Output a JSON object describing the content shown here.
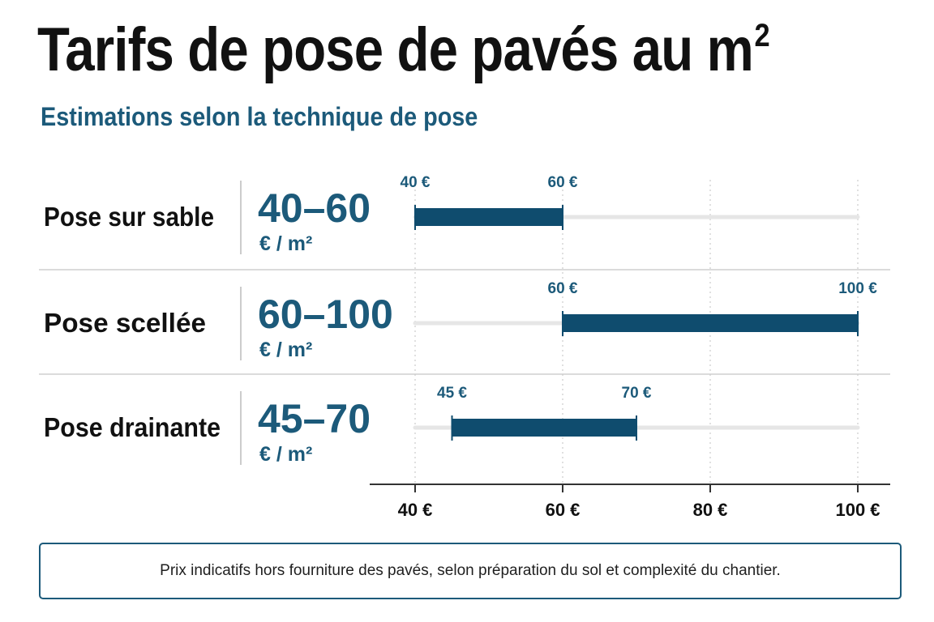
{
  "title": "Tarifs de pose de pavés au m",
  "title_superscript": "2",
  "subtitle": "Estimations selon la technique de pose",
  "unit_label": "€ / m²",
  "footer_note": "Prix indicatifs hors fourniture des pavés, selon préparation du sol et complexité du chantier.",
  "colors": {
    "bar": "#0f4c6e",
    "track": "#e6e6e6",
    "range_text": "#1c5a7a",
    "label_text": "#111111",
    "border": "#1c5a7a"
  },
  "chart_data": {
    "type": "bar",
    "orientation": "horizontal-range",
    "x_ticks": [
      40,
      60,
      80,
      100
    ],
    "x_tick_labels": [
      "40 €",
      "60 €",
      "80 €",
      "100 €"
    ],
    "xlim": [
      40,
      100
    ],
    "grid": true,
    "rows": [
      {
        "label": "Pose sur sable",
        "range_text": "40–60",
        "min": 40,
        "max": 60,
        "min_label": "40 €",
        "max_label": "60 €"
      },
      {
        "label": "Pose scellée",
        "range_text": "60–100",
        "min": 60,
        "max": 100,
        "min_label": "60 €",
        "max_label": "100 €"
      },
      {
        "label": "Pose drainante",
        "range_text": "45–70",
        "min": 45,
        "max": 70,
        "min_label": "45 €",
        "max_label": "70 €"
      }
    ]
  }
}
